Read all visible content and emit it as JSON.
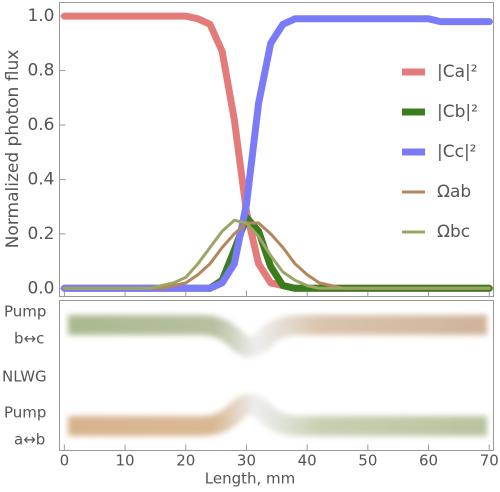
{
  "chart_data": {
    "type": "line",
    "ylabel": "Normalized photon flux",
    "xlabel": "Length, mm",
    "x": [
      0,
      2,
      4,
      6,
      8,
      10,
      12,
      14,
      16,
      18,
      20,
      22,
      24,
      26,
      28,
      30,
      32,
      34,
      36,
      38,
      40,
      42,
      44,
      46,
      48,
      50,
      52,
      54,
      56,
      58,
      60,
      62,
      64,
      66,
      68,
      70
    ],
    "series": [
      {
        "name": "|Ca|²",
        "color": "#e37b7b",
        "values": [
          1.0,
          1.0,
          1.0,
          1.0,
          1.0,
          1.0,
          1.0,
          1.0,
          1.0,
          1.0,
          1.0,
          0.99,
          0.97,
          0.87,
          0.62,
          0.28,
          0.09,
          0.02,
          0.01,
          0,
          0,
          0,
          0,
          0,
          0,
          0,
          0,
          0,
          0,
          0,
          0,
          0,
          0,
          0,
          0,
          0
        ]
      },
      {
        "name": "|Cb|²",
        "color": "#3b7d1e",
        "values": [
          0,
          0,
          0,
          0,
          0,
          0,
          0,
          0,
          0,
          0,
          0,
          0,
          0,
          0.03,
          0.14,
          0.26,
          0.21,
          0.08,
          0.01,
          0,
          0,
          0,
          0,
          0,
          0,
          0,
          0,
          0,
          0,
          0,
          0,
          0,
          0,
          0,
          0,
          0
        ]
      },
      {
        "name": "|Cc|²",
        "color": "#7b7bfa",
        "values": [
          0,
          0,
          0,
          0,
          0,
          0,
          0,
          0,
          0,
          0,
          0,
          0,
          0,
          0.02,
          0.09,
          0.31,
          0.68,
          0.9,
          0.97,
          0.99,
          0.99,
          0.99,
          0.99,
          0.99,
          0.99,
          0.99,
          0.99,
          0.99,
          0.99,
          0.99,
          0.99,
          0.98,
          0.98,
          0.98,
          0.98,
          0.98
        ]
      },
      {
        "name": "Ωab",
        "color": "#b3875c",
        "values": [
          0,
          0,
          0,
          0,
          0,
          0,
          0,
          0,
          0,
          0.01,
          0.02,
          0.05,
          0.09,
          0.15,
          0.2,
          0.24,
          0.24,
          0.2,
          0.15,
          0.09,
          0.05,
          0.02,
          0.01,
          0,
          0,
          0,
          0,
          0,
          0,
          0,
          0,
          0,
          0,
          0,
          0,
          0
        ]
      },
      {
        "name": "Ωbc",
        "color": "#9ca566",
        "values": [
          0,
          0,
          0,
          0,
          0,
          0,
          0,
          0,
          0.01,
          0.02,
          0.04,
          0.09,
          0.15,
          0.21,
          0.25,
          0.24,
          0.19,
          0.12,
          0.06,
          0.03,
          0.01,
          0,
          0,
          0,
          0,
          0,
          0,
          0,
          0,
          0,
          0,
          0,
          0,
          0,
          0,
          0
        ]
      }
    ],
    "xlim": [
      -0.8,
      70.7
    ],
    "ylim": [
      -0.03,
      1.05
    ],
    "xticks": [
      0,
      10,
      20,
      30,
      40,
      50,
      60,
      70
    ],
    "yticks": [
      {
        "value": 0,
        "label": "0.0"
      },
      {
        "value": 0.2,
        "label": "0.2"
      },
      {
        "value": 0.4,
        "label": "0.4"
      },
      {
        "value": 0.6,
        "label": "0.6"
      },
      {
        "value": 0.8,
        "label": "0.8"
      },
      {
        "value": 1,
        "label": "1.0"
      }
    ],
    "legend": "right"
  },
  "schematic": {
    "labels": [
      "Pump",
      "b↔c",
      "NLWG",
      "Pump",
      "a↔b"
    ]
  }
}
